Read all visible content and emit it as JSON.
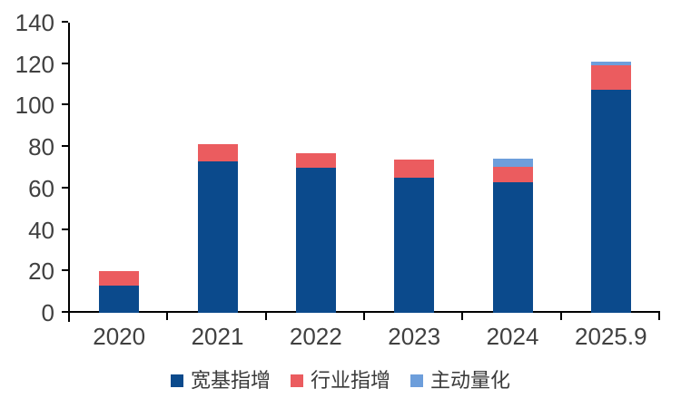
{
  "chart_data": {
    "type": "bar",
    "stacked": true,
    "categories": [
      "2020",
      "2021",
      "2022",
      "2023",
      "2024",
      "2025.9"
    ],
    "series": [
      {
        "name": "宽基指增",
        "color": "#0B4A8C",
        "values": [
          13,
          73,
          70,
          65,
          63,
          107.5
        ]
      },
      {
        "name": "行业指增",
        "color": "#EB5C5F",
        "values": [
          7,
          8.5,
          7,
          9,
          7.5,
          12
        ]
      },
      {
        "name": "主动量化",
        "color": "#6D9EDB",
        "values": [
          0,
          0,
          0,
          0,
          4,
          1.5
        ]
      }
    ],
    "ylim": [
      0,
      140
    ],
    "yticks": [
      0,
      20,
      40,
      60,
      80,
      100,
      120,
      140
    ],
    "grid": false,
    "legend_position": "bottom"
  },
  "colors": {
    "axis_text": "#404040",
    "legend_text": "#3A3A3A",
    "axis_line": "#000000",
    "background": "#FFFFFF"
  }
}
